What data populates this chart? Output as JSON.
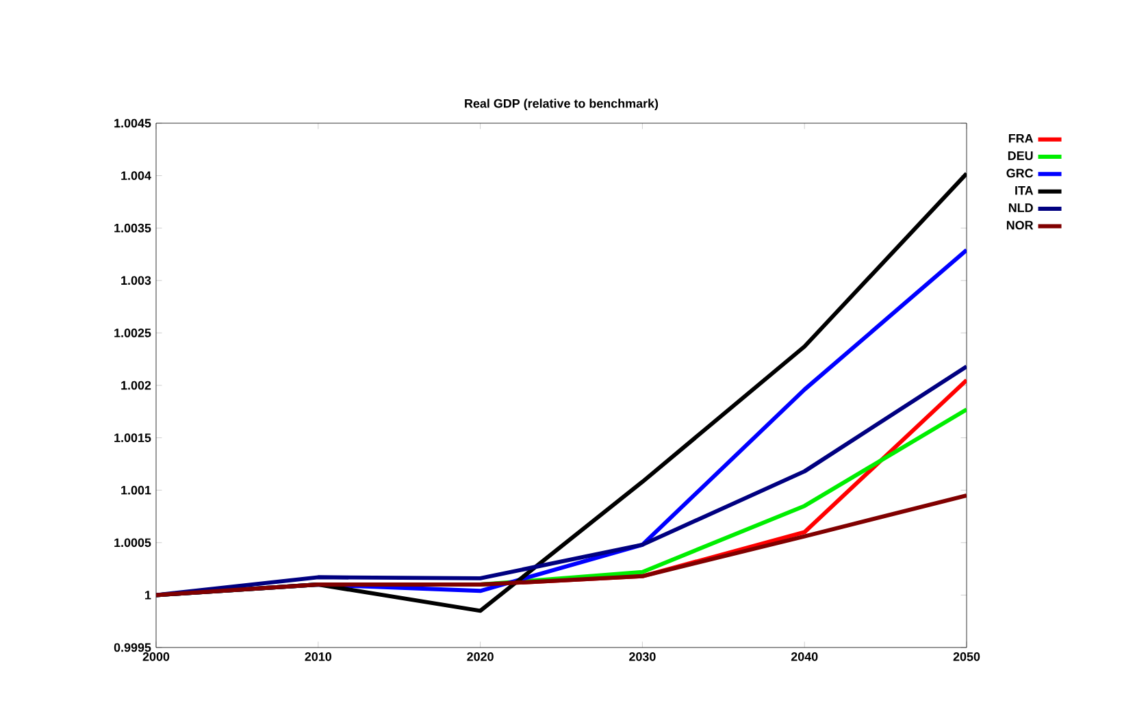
{
  "chart_data": {
    "type": "line",
    "title": "Real GDP (relative to benchmark)",
    "x": [
      2000,
      2010,
      2020,
      2030,
      2040,
      2050
    ],
    "xlim": [
      2000,
      2050
    ],
    "xticks": [
      2000,
      2010,
      2020,
      2030,
      2040,
      2050
    ],
    "ylim": [
      0.9995,
      1.0045
    ],
    "yticks": [
      0.9995,
      1,
      1.0005,
      1.001,
      1.0015,
      1.002,
      1.0025,
      1.003,
      1.0035,
      1.004,
      1.0045
    ],
    "grid": false,
    "legend": "top right",
    "marker": "none",
    "line_style": "solid",
    "series": [
      {
        "name": "FRA",
        "color": "#ff0000",
        "values": [
          null,
          null,
          1.0001,
          1.00018,
          1.0006,
          1.00205
        ]
      },
      {
        "name": "DEU",
        "color": "#00ee00",
        "values": [
          1,
          1.0001,
          1.0001,
          1.00022,
          1.00085,
          1.00177
        ]
      },
      {
        "name": "GRC",
        "color": "#0000ff",
        "values": [
          1,
          1.0001,
          1.00004,
          1.00048,
          1.00196,
          1.00329
        ]
      },
      {
        "name": "ITA",
        "color": "#000000",
        "values": [
          1,
          1.0001,
          0.99985,
          1.00108,
          1.00237,
          1.00402
        ]
      },
      {
        "name": "NLD",
        "color": "#000080",
        "values": [
          1,
          1.00017,
          1.00016,
          1.00048,
          1.00118,
          1.00218
        ]
      },
      {
        "name": "NOR",
        "color": "#800000",
        "values": [
          1,
          1.0001,
          1.0001,
          1.00018,
          1.00056,
          1.00095
        ]
      }
    ]
  }
}
